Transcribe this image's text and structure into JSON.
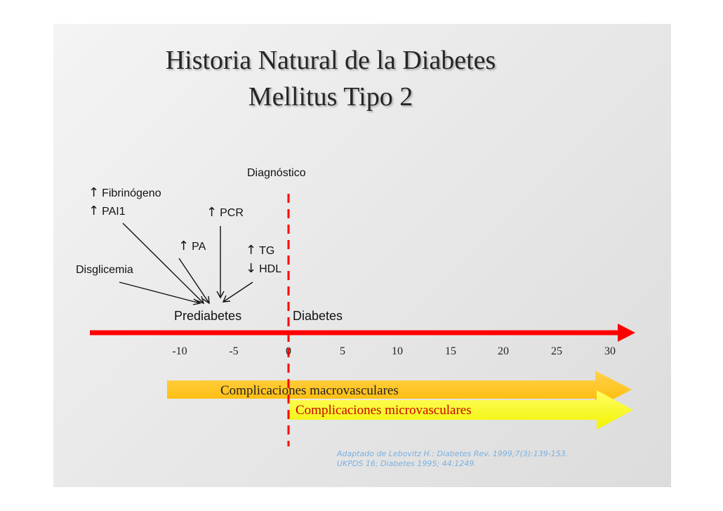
{
  "title": {
    "line1": "Historia Natural de la Diabetes",
    "line2": "Mellitus Tipo 2"
  },
  "labels": {
    "diagnostico": "Diagnóstico",
    "fibrinogeno": "Fibrinógeno",
    "pai1": "PAI1",
    "pcr": "PCR",
    "pa": "PA",
    "tg": "TG",
    "hdl": "HDL",
    "disglicemia": "Disglicemia",
    "prediabetes": "Prediabetes",
    "diabetes": "Diabetes"
  },
  "arrows": {
    "up": "↑",
    "down": "↓"
  },
  "timeline": {
    "ticks": [
      "-10",
      "-5",
      "0",
      "5",
      "10",
      "15",
      "20",
      "25",
      "30"
    ],
    "color": "#ff0000"
  },
  "complications": {
    "macro": "Complicaciones macrovasculares",
    "micro": "Complicaciones microvasculares",
    "macro_color": "#ffc000",
    "micro_color": "#ffff00",
    "macro_text_color": "#222222",
    "micro_text_color": "#cc0000"
  },
  "reference": {
    "line1": "Adaptado de Lebovitz H.: Diabetes Rev. 1999;7(3):139-153.",
    "line2": "UKPDS 16; Diabetes 1995; 44:1249."
  }
}
